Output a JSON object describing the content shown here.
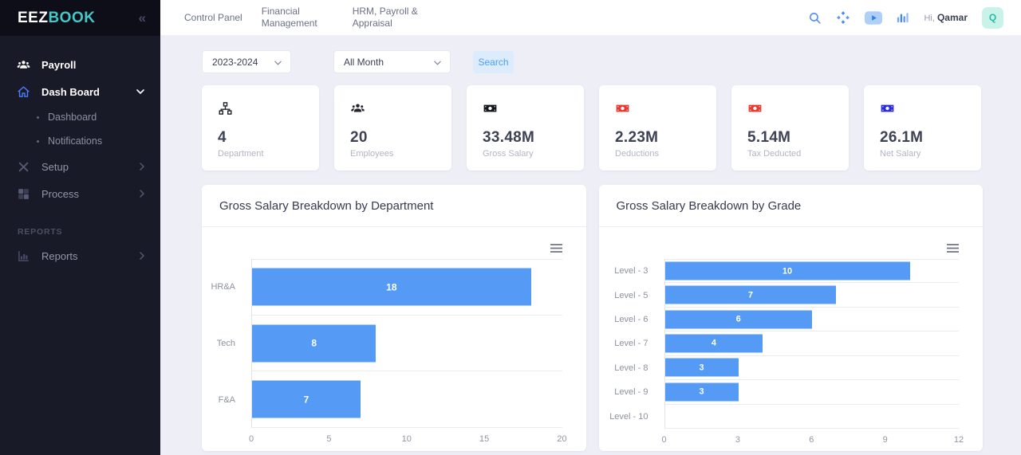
{
  "brand": {
    "primary": "EEZ",
    "secondary": "BOOK"
  },
  "sidebar": {
    "collapse_icon": "«",
    "items": [
      {
        "label": "Payroll",
        "icon": "users-icon"
      },
      {
        "label": "Dash Board",
        "icon": "home-icon",
        "expanded": true
      },
      {
        "label": "Setup",
        "icon": "tools-icon"
      },
      {
        "label": "Process",
        "icon": "grid-icon"
      }
    ],
    "subitems": [
      {
        "label": "Dashboard"
      },
      {
        "label": "Notifications"
      }
    ],
    "section_label": "REPORTS",
    "reports_item": {
      "label": "Reports",
      "icon": "bar-chart-icon"
    }
  },
  "topnav": {
    "tabs": [
      "Control Panel",
      "Financial Management",
      "HRM, Payroll & Appraisal"
    ],
    "greeting": "Hi,",
    "username": "Qamar",
    "avatar_initial": "Q"
  },
  "filters": {
    "year": "2023-2024",
    "month": "All Month",
    "search_label": "Search"
  },
  "stats": [
    {
      "icon": "sitemap-icon",
      "value": "4",
      "label": "Department",
      "icon_color": "#23242e"
    },
    {
      "icon": "users-icon",
      "value": "20",
      "label": "Employees",
      "icon_color": "#23242e"
    },
    {
      "icon": "banknote-icon",
      "value": "33.48M",
      "label": "Gross Salary",
      "icon_color": "#15161d"
    },
    {
      "icon": "banknote-icon",
      "value": "2.23M",
      "label": "Deductions",
      "icon_color": "#e8392f"
    },
    {
      "icon": "banknote-icon",
      "value": "5.14M",
      "label": "Tax Deducted",
      "icon_color": "#e8392f"
    },
    {
      "icon": "banknote-icon",
      "value": "26.1M",
      "label": "Net Salary",
      "icon_color": "#2a2adf"
    }
  ],
  "chart_data": [
    {
      "type": "bar",
      "orientation": "horizontal",
      "title": "Gross Salary Breakdown by Department",
      "categories": [
        "HR&A",
        "Tech",
        "F&A"
      ],
      "values": [
        18,
        8,
        7
      ],
      "xlabel": "",
      "ylabel": "",
      "xlim": [
        0,
        20
      ],
      "xticks": [
        "0",
        "5",
        "10",
        "15",
        "20"
      ],
      "grid": true,
      "legend": "none",
      "bar_color": "#559bf5"
    },
    {
      "type": "bar",
      "orientation": "horizontal",
      "title": "Gross Salary Breakdown by Grade",
      "categories": [
        "Level - 3",
        "Level - 5",
        "Level - 6",
        "Level - 7",
        "Level - 8",
        "Level - 9",
        "Level - 10"
      ],
      "values": [
        10,
        7,
        6,
        4,
        3,
        3,
        0
      ],
      "xlabel": "",
      "ylabel": "",
      "xlim": [
        0,
        12
      ],
      "xticks": [
        "0",
        "3",
        "6",
        "9",
        "12"
      ],
      "grid": true,
      "legend": "none",
      "bar_color": "#559bf5"
    }
  ],
  "colors": {
    "sidebar_bg": "#191a27",
    "sidebar_top_bg": "#0d0e18",
    "page_bg": "#edeef6",
    "teal_accent": "#45c8c8",
    "blue_accent": "#4285f4",
    "bar_blue": "#559bf5",
    "red_icon": "#e8392f",
    "avatar_bg": "#c9f2e9",
    "avatar_text": "#2cbba1",
    "search_btn_bg": "#dcecfd",
    "search_btn_text": "#4aa0f8"
  }
}
